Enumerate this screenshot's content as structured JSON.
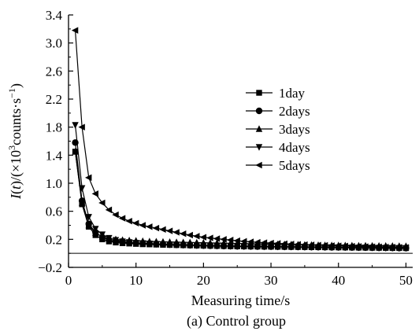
{
  "chart_data": {
    "type": "line",
    "caption": "(a) Control group",
    "xlabel": "Measuring time/s",
    "ylabel_parts": [
      "I",
      "(",
      "t",
      ")/(×10",
      "3",
      "counts·s",
      "−1",
      ")"
    ],
    "xlim": [
      0,
      51
    ],
    "ylim": [
      -0.2,
      3.4
    ],
    "xticks": [
      0,
      10,
      20,
      30,
      40,
      50
    ],
    "xtick_labels": [
      "0",
      "10",
      "20",
      "30",
      "40",
      "50"
    ],
    "yticks": [
      -0.2,
      0.2,
      0.6,
      1.0,
      1.4,
      1.8,
      2.2,
      2.6,
      3.0,
      3.4
    ],
    "ytick_labels": [
      "−0.2",
      "0.2",
      "0.6",
      "1.0",
      "1.4",
      "1.8",
      "2.2",
      "2.6",
      "3.0",
      "3.4"
    ],
    "legend_position": "right-center",
    "x": [
      1,
      2,
      3,
      4,
      5,
      6,
      7,
      8,
      9,
      10,
      11,
      12,
      13,
      14,
      15,
      16,
      17,
      18,
      19,
      20,
      21,
      22,
      23,
      24,
      25,
      26,
      27,
      28,
      29,
      30,
      31,
      32,
      33,
      34,
      35,
      36,
      37,
      38,
      39,
      40,
      41,
      42,
      43,
      44,
      45,
      46,
      47,
      48,
      49,
      50
    ],
    "series": [
      {
        "name": "1day",
        "marker": "square",
        "values": [
          1.45,
          0.7,
          0.38,
          0.26,
          0.2,
          0.17,
          0.155,
          0.145,
          0.14,
          0.135,
          0.13,
          0.128,
          0.125,
          0.122,
          0.12,
          0.118,
          0.116,
          0.114,
          0.112,
          0.11,
          0.108,
          0.106,
          0.104,
          0.102,
          0.1,
          0.099,
          0.098,
          0.097,
          0.096,
          0.095,
          0.094,
          0.093,
          0.092,
          0.091,
          0.09,
          0.089,
          0.088,
          0.087,
          0.086,
          0.085,
          0.084,
          0.083,
          0.082,
          0.081,
          0.08,
          0.079,
          0.078,
          0.077,
          0.076,
          0.075
        ]
      },
      {
        "name": "2days",
        "marker": "circle",
        "values": [
          1.58,
          0.75,
          0.42,
          0.3,
          0.23,
          0.19,
          0.17,
          0.16,
          0.15,
          0.145,
          0.14,
          0.135,
          0.13,
          0.127,
          0.124,
          0.121,
          0.118,
          0.115,
          0.112,
          0.11,
          0.108,
          0.106,
          0.104,
          0.102,
          0.1,
          0.099,
          0.098,
          0.097,
          0.096,
          0.095,
          0.094,
          0.093,
          0.092,
          0.091,
          0.09,
          0.089,
          0.088,
          0.087,
          0.086,
          0.085,
          0.084,
          0.083,
          0.082,
          0.081,
          0.08,
          0.079,
          0.078,
          0.077,
          0.076,
          0.075
        ]
      },
      {
        "name": "3days",
        "marker": "triangle-up",
        "values": [
          1.45,
          0.72,
          0.4,
          0.29,
          0.24,
          0.21,
          0.2,
          0.19,
          0.185,
          0.18,
          0.175,
          0.17,
          0.168,
          0.165,
          0.162,
          0.16,
          0.158,
          0.156,
          0.154,
          0.152,
          0.15,
          0.148,
          0.146,
          0.144,
          0.142,
          0.14,
          0.138,
          0.136,
          0.134,
          0.132,
          0.13,
          0.128,
          0.126,
          0.124,
          0.122,
          0.12,
          0.118,
          0.116,
          0.115,
          0.114,
          0.113,
          0.112,
          0.111,
          0.11,
          0.109,
          0.108,
          0.107,
          0.106,
          0.105,
          0.104
        ]
      },
      {
        "name": "4days",
        "marker": "triangle-down",
        "values": [
          1.83,
          0.93,
          0.52,
          0.35,
          0.27,
          0.22,
          0.19,
          0.17,
          0.16,
          0.15,
          0.145,
          0.14,
          0.135,
          0.13,
          0.127,
          0.124,
          0.121,
          0.118,
          0.115,
          0.112,
          0.11,
          0.108,
          0.106,
          0.104,
          0.102,
          0.1,
          0.099,
          0.098,
          0.097,
          0.096,
          0.095,
          0.094,
          0.093,
          0.092,
          0.091,
          0.09,
          0.089,
          0.088,
          0.087,
          0.086,
          0.085,
          0.084,
          0.083,
          0.082,
          0.081,
          0.08,
          0.079,
          0.078,
          0.077,
          0.076
        ]
      },
      {
        "name": "5days",
        "marker": "triangle-left",
        "values": [
          3.18,
          1.8,
          1.08,
          0.85,
          0.72,
          0.62,
          0.55,
          0.5,
          0.46,
          0.43,
          0.4,
          0.38,
          0.36,
          0.34,
          0.32,
          0.3,
          0.28,
          0.26,
          0.245,
          0.23,
          0.22,
          0.21,
          0.2,
          0.19,
          0.18,
          0.172,
          0.165,
          0.158,
          0.152,
          0.147,
          0.142,
          0.137,
          0.133,
          0.129,
          0.125,
          0.121,
          0.117,
          0.114,
          0.111,
          0.108,
          0.105,
          0.102,
          0.099,
          0.097,
          0.095,
          0.093,
          0.091,
          0.089,
          0.087,
          0.085
        ]
      }
    ]
  }
}
